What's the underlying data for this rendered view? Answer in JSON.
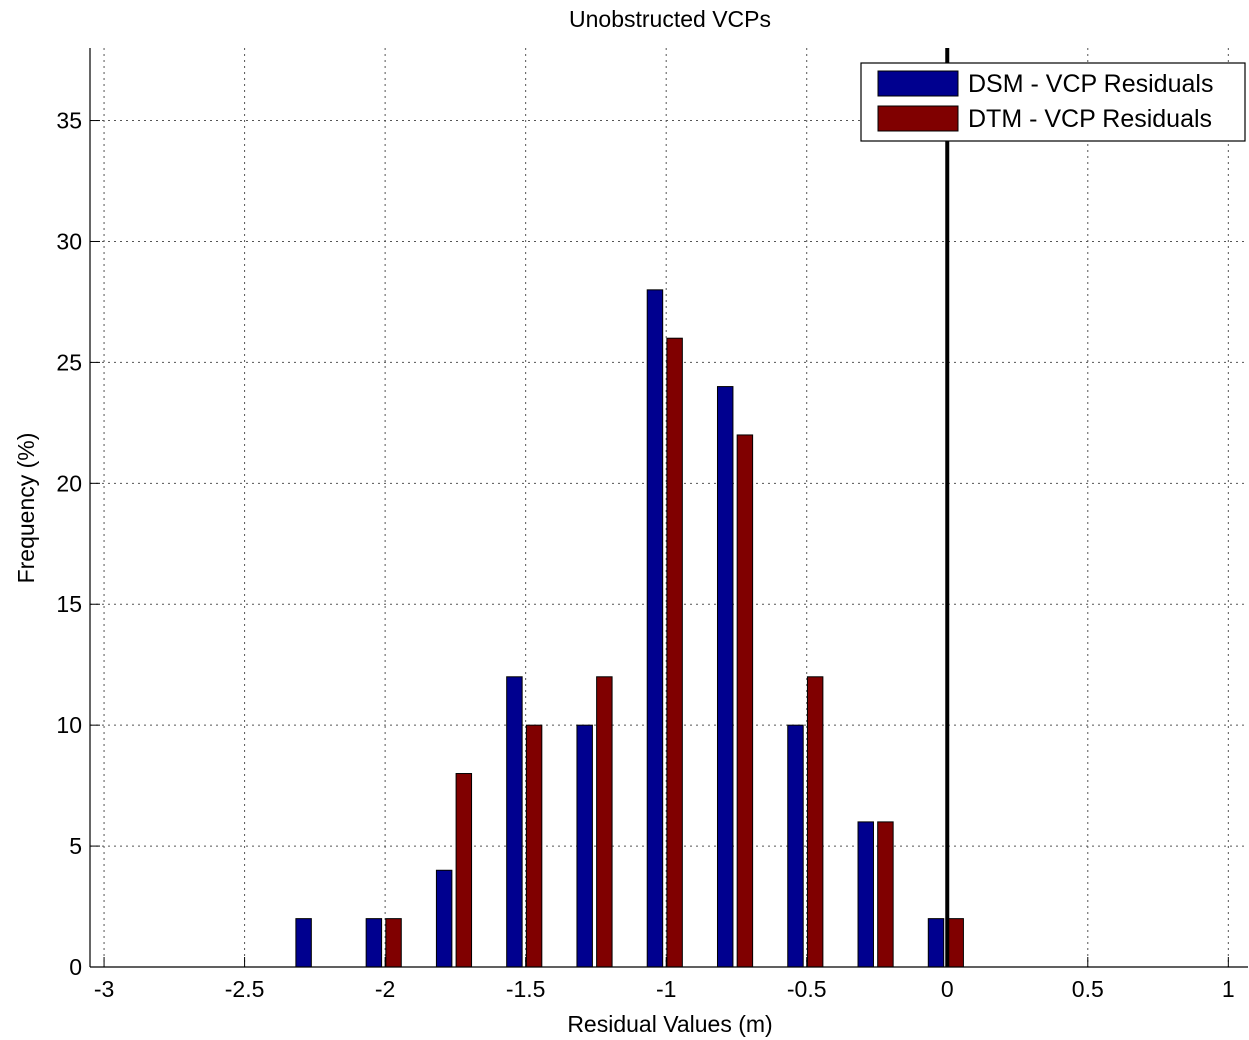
{
  "chart_data": {
    "type": "bar",
    "title": "Unobstructed VCPs",
    "xlabel": "Residual Values (m)",
    "ylabel": "Frequency (%)",
    "xlim": [
      -3.05,
      1.07
    ],
    "ylim": [
      0,
      38
    ],
    "xticks": [
      -3,
      -2.5,
      -2,
      -1.5,
      -1,
      -0.5,
      0,
      0.5,
      1
    ],
    "xtick_labels": [
      "-3",
      "-2.5",
      "-2",
      "-1.5",
      "-1",
      "-0.5",
      "0",
      "0.5",
      "1"
    ],
    "yticks": [
      0,
      5,
      10,
      15,
      20,
      25,
      30,
      35
    ],
    "ytick_labels": [
      "0",
      "5",
      "10",
      "15",
      "20",
      "25",
      "30",
      "35"
    ],
    "grid": true,
    "legend_position": "top-right",
    "bar_width": 0.055,
    "reference_line_x": 0,
    "series": [
      {
        "name": "DSM - VCP Residuals",
        "color": "#00008f",
        "x": [
          -2.29,
          -2.04,
          -1.79,
          -1.54,
          -1.29,
          -1.04,
          -0.79,
          -0.54,
          -0.29,
          -0.04
        ],
        "values": [
          2,
          2,
          4,
          12,
          10,
          28,
          24,
          10,
          6,
          2
        ]
      },
      {
        "name": "DTM - VCP Residuals",
        "color": "#800000",
        "x": [
          -2.22,
          -1.97,
          -1.72,
          -1.47,
          -1.22,
          -0.97,
          -0.72,
          -0.47,
          -0.22,
          0.03
        ],
        "values": [
          0,
          2,
          8,
          10,
          12,
          26,
          22,
          12,
          6,
          2
        ]
      }
    ]
  }
}
